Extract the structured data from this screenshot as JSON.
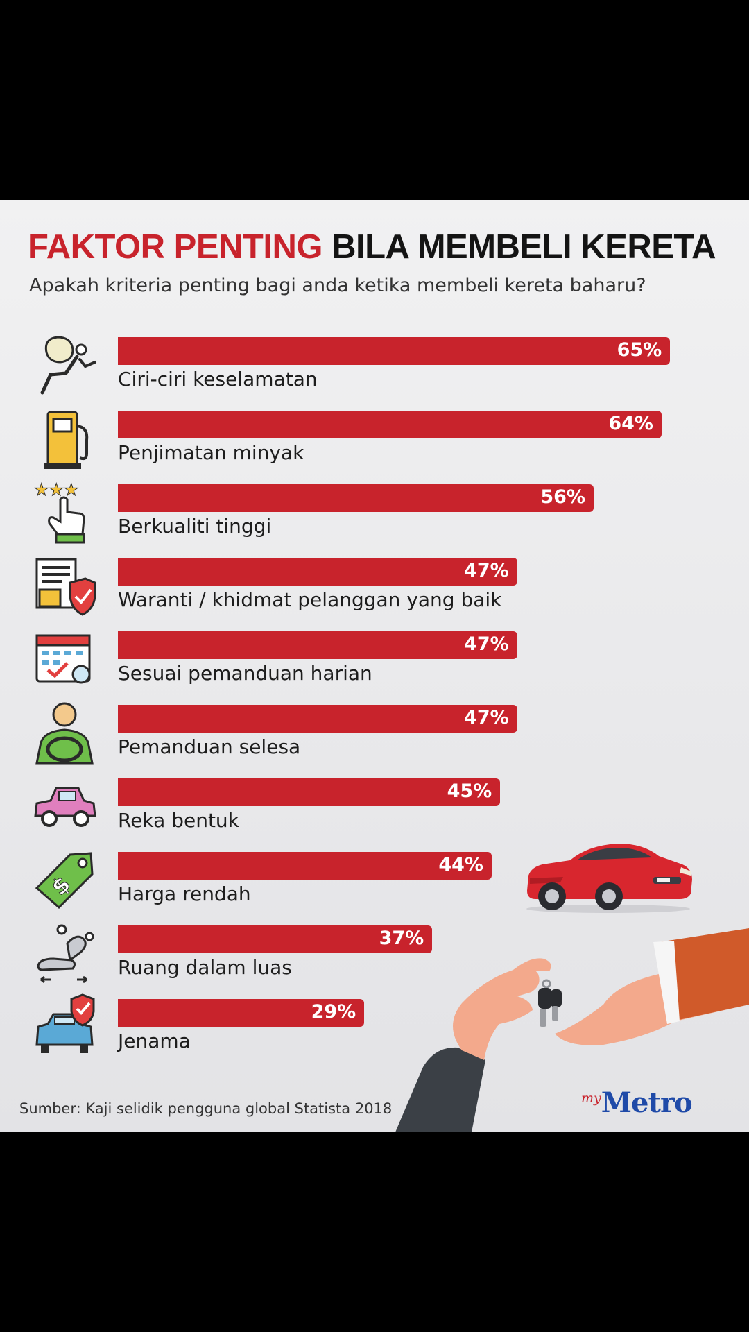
{
  "infographic": {
    "title_red": "FAKTOR PENTING",
    "title_black": "BILA MEMBELI KERETA",
    "subtitle": "Apakah kriteria penting bagi anda ketika membeli kereta baharu?",
    "source": "Sumber: Kaji selidik pengguna global Statista 2018",
    "logo_my": "my",
    "logo_metro": "Metro"
  },
  "colors": {
    "accent": "#c8232c",
    "logo_blue": "#1f4aa8"
  },
  "chart_data": {
    "type": "bar",
    "orientation": "horizontal",
    "title": "FAKTOR PENTING BILA MEMBELI KERETA",
    "subtitle": "Apakah kriteria penting bagi anda ketika membeli kereta baharu?",
    "categories": [
      "Ciri-ciri keselamatan",
      "Penjimatan minyak",
      "Berkualiti tinggi",
      "Waranti / khidmat pelanggan yang baik",
      "Sesuai pemanduan harian",
      "Pemanduan selesa",
      "Reka bentuk",
      "Harga rendah",
      "Ruang dalam luas",
      "Jenama"
    ],
    "values": [
      65,
      64,
      56,
      47,
      47,
      47,
      45,
      44,
      37,
      29
    ],
    "value_labels": [
      "65%",
      "64%",
      "56%",
      "47%",
      "47%",
      "47%",
      "45%",
      "44%",
      "37%",
      "29%"
    ],
    "icons": [
      "airbag-icon",
      "fuel-pump-icon",
      "star-rating-hand-icon",
      "warranty-shield-icon",
      "calendar-check-icon",
      "driver-icon",
      "car-side-icon",
      "price-tag-icon",
      "seat-icon",
      "car-shield-icon"
    ],
    "xlabel": "",
    "ylabel": "",
    "legend": "none",
    "grid": false
  }
}
